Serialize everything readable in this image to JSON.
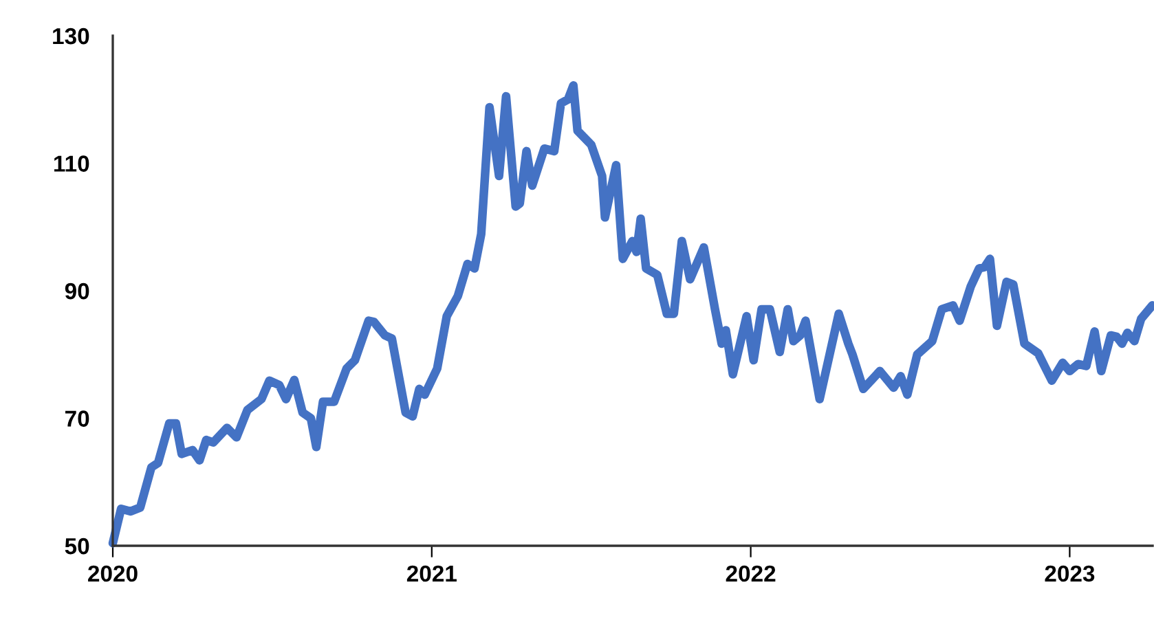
{
  "chart_data": {
    "type": "line",
    "xlim": [
      2020,
      2023.26
    ],
    "xticks": [
      2020,
      2021,
      2022,
      2023
    ],
    "ylim": [
      50,
      130
    ],
    "yticks": [
      50,
      70,
      90,
      110,
      130
    ],
    "grid": false,
    "marker": "none",
    "line_style": "solid",
    "series": [
      {
        "color": "#4472c4",
        "x": [
          2020,
          2020.026,
          2020.056,
          2020.086,
          2020.121,
          2020.142,
          2020.177,
          2020.198,
          2020.216,
          2020.25,
          2020.272,
          2020.293,
          2020.315,
          2020.358,
          2020.388,
          2020.422,
          2020.466,
          2020.491,
          2020.522,
          2020.543,
          2020.569,
          2020.595,
          2020.621,
          2020.638,
          2020.659,
          2020.694,
          2020.733,
          2020.759,
          2020.802,
          2020.819,
          2020.853,
          2020.875,
          2020.918,
          2020.94,
          2020.961,
          2020.978,
          2021.017,
          2021.047,
          2021.082,
          2021.112,
          2021.134,
          2021.155,
          2021.181,
          2021.211,
          2021.233,
          2021.263,
          2021.276,
          2021.297,
          2021.315,
          2021.353,
          2021.384,
          2021.405,
          2021.427,
          2021.444,
          2021.457,
          2021.5,
          2021.534,
          2021.543,
          2021.578,
          2021.599,
          2021.629,
          2021.642,
          2021.655,
          2021.672,
          2021.707,
          2021.737,
          2021.759,
          2021.784,
          2021.81,
          2021.853,
          2021.888,
          2021.909,
          2021.922,
          2021.944,
          2021.987,
          2022.009,
          2022.034,
          2022.06,
          2022.091,
          2022.116,
          2022.134,
          2022.155,
          2022.172,
          2022.216,
          2022.276,
          2022.306,
          2022.319,
          2022.353,
          2022.405,
          2022.448,
          2022.47,
          2022.491,
          2022.522,
          2022.569,
          2022.599,
          2022.634,
          2022.655,
          2022.69,
          2022.716,
          2022.733,
          2022.75,
          2022.772,
          2022.802,
          2022.823,
          2022.858,
          2022.901,
          2022.944,
          2022.978,
          2023,
          2023.026,
          2023.052,
          2023.078,
          2023.099,
          2023.129,
          2023.147,
          2023.164,
          2023.181,
          2023.203,
          2023.224,
          2023.259
        ],
        "values": [
          50.4,
          55.8,
          55.4,
          56,
          62.3,
          63,
          69.2,
          69.2,
          64.4,
          65,
          63.4,
          66.6,
          66.2,
          68.5,
          67,
          71.3,
          73,
          75.9,
          75.2,
          73,
          76,
          70.9,
          70,
          65.5,
          72.6,
          72.6,
          77.8,
          79.1,
          85.3,
          85.1,
          83,
          82.5,
          70.9,
          70.3,
          74.6,
          73.7,
          77.8,
          86,
          89.2,
          94.2,
          93.5,
          98.9,
          118.8,
          108,
          120.5,
          103.2,
          103.7,
          111.9,
          106.5,
          112.3,
          111.9,
          119.4,
          120,
          122.2,
          115.1,
          112.9,
          108,
          101.5,
          109.7,
          95,
          97.8,
          96.1,
          101.3,
          93.5,
          92.5,
          86.4,
          86.4,
          97.8,
          91.8,
          96.8,
          87.1,
          81.7,
          83.8,
          76.9,
          86,
          79.1,
          87.1,
          87.1,
          80.4,
          87.1,
          82.1,
          83,
          85.3,
          73,
          86.4,
          81.7,
          80,
          74.6,
          77.4,
          74.8,
          76.6,
          73.7,
          80,
          82.1,
          87.1,
          87.7,
          85.3,
          90.7,
          93.5,
          93.7,
          95,
          84.5,
          91.4,
          91,
          81.7,
          80.2,
          75.9,
          78.7,
          77.4,
          78.5,
          78.2,
          83.6,
          77.4,
          83,
          82.8,
          81.7,
          83.4,
          82.1,
          85.6,
          87.7
        ]
      }
    ]
  }
}
